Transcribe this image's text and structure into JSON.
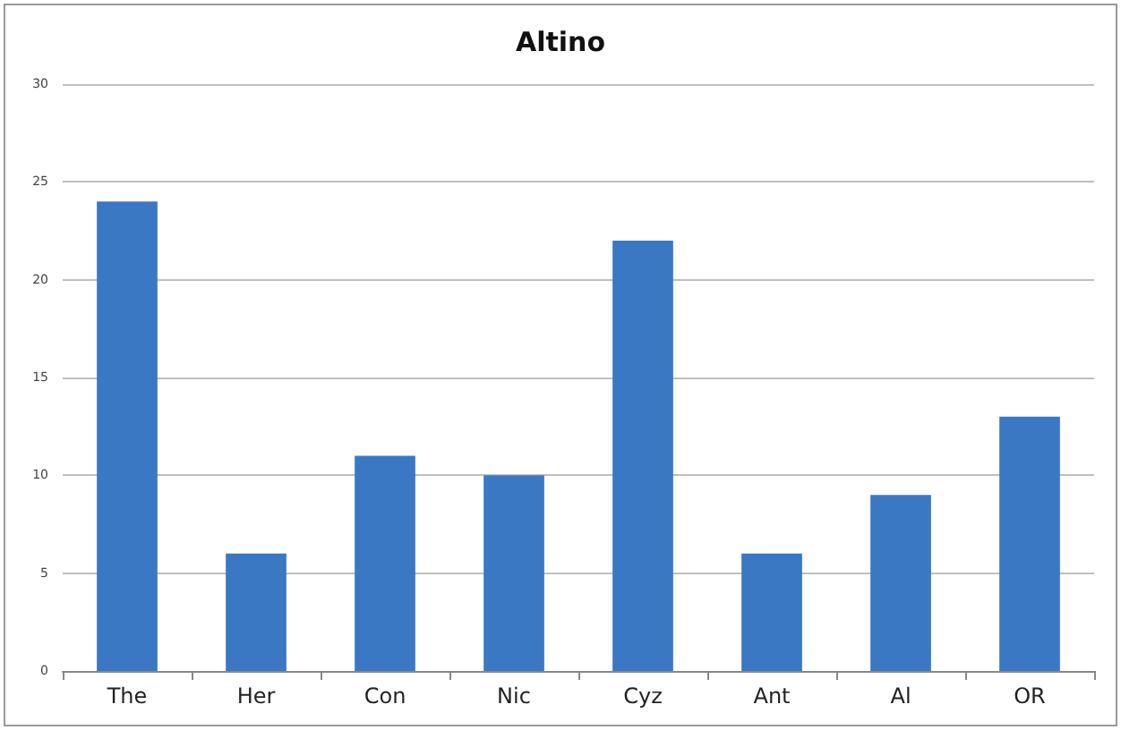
{
  "chart_data": {
    "type": "bar",
    "title": "Altino",
    "categories": [
      "The",
      "Her",
      "Con",
      "Nic",
      "Cyz",
      "Ant",
      "Al",
      "OR"
    ],
    "values": [
      24,
      6,
      11,
      10,
      22,
      6,
      9,
      13
    ],
    "color": "#3a78c4",
    "ylim": [
      0,
      30
    ],
    "yticks": [
      0,
      5,
      10,
      15,
      20,
      25,
      30
    ],
    "grid": "y"
  }
}
